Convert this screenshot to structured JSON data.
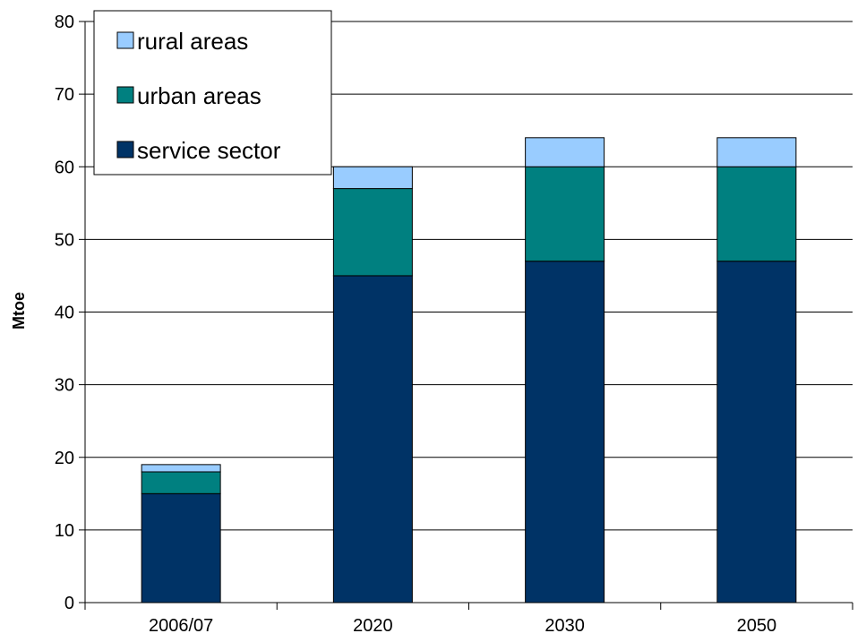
{
  "chart_data": {
    "type": "bar",
    "stacked": true,
    "categories": [
      "2006/07",
      "2020",
      "2030",
      "2050"
    ],
    "series": [
      {
        "name": "service sector",
        "values": [
          15,
          45,
          47,
          47
        ],
        "color": "#003366"
      },
      {
        "name": "urban areas",
        "values": [
          3,
          12,
          13,
          13
        ],
        "color": "#008080"
      },
      {
        "name": "rural areas",
        "values": [
          1,
          3,
          4,
          4
        ],
        "color": "#99CCFF"
      }
    ],
    "legend_order": [
      "rural areas",
      "urban areas",
      "service sector"
    ],
    "ylabel": "Mtoe",
    "ylim": [
      0,
      80
    ],
    "yticks": [
      0,
      10,
      20,
      30,
      40,
      50,
      60,
      70,
      80
    ],
    "grid": true,
    "legend_position": "top-left"
  }
}
